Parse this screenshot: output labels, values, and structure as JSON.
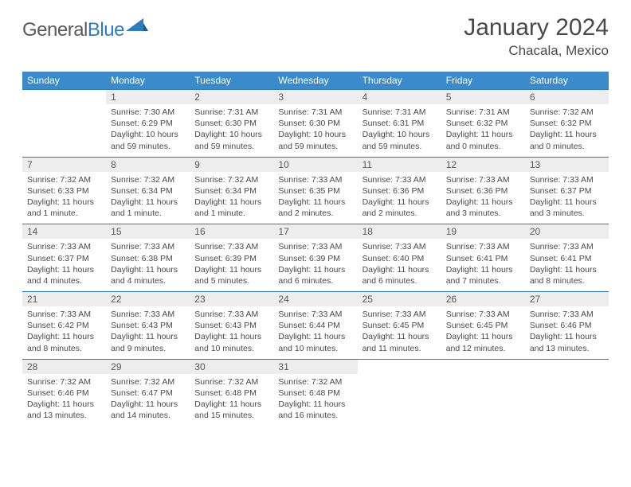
{
  "logo": {
    "part1": "General",
    "part2": "Blue"
  },
  "title": "January 2024",
  "location": "Chacala, Mexico",
  "colors": {
    "header_bg": "#3b8bca",
    "header_text": "#ffffff",
    "daynum_bg": "#ededed",
    "row_border": "#2f7bbd",
    "text": "#4a4a4a",
    "logo_accent": "#2f7bbd"
  },
  "weekdays": [
    "Sunday",
    "Monday",
    "Tuesday",
    "Wednesday",
    "Thursday",
    "Friday",
    "Saturday"
  ],
  "weeks": [
    {
      "nums": [
        "",
        "1",
        "2",
        "3",
        "4",
        "5",
        "6"
      ],
      "cells": [
        null,
        {
          "sunrise": "Sunrise: 7:30 AM",
          "sunset": "Sunset: 6:29 PM",
          "daylight": "Daylight: 10 hours and 59 minutes."
        },
        {
          "sunrise": "Sunrise: 7:31 AM",
          "sunset": "Sunset: 6:30 PM",
          "daylight": "Daylight: 10 hours and 59 minutes."
        },
        {
          "sunrise": "Sunrise: 7:31 AM",
          "sunset": "Sunset: 6:30 PM",
          "daylight": "Daylight: 10 hours and 59 minutes."
        },
        {
          "sunrise": "Sunrise: 7:31 AM",
          "sunset": "Sunset: 6:31 PM",
          "daylight": "Daylight: 10 hours and 59 minutes."
        },
        {
          "sunrise": "Sunrise: 7:31 AM",
          "sunset": "Sunset: 6:32 PM",
          "daylight": "Daylight: 11 hours and 0 minutes."
        },
        {
          "sunrise": "Sunrise: 7:32 AM",
          "sunset": "Sunset: 6:32 PM",
          "daylight": "Daylight: 11 hours and 0 minutes."
        }
      ]
    },
    {
      "nums": [
        "7",
        "8",
        "9",
        "10",
        "11",
        "12",
        "13"
      ],
      "cells": [
        {
          "sunrise": "Sunrise: 7:32 AM",
          "sunset": "Sunset: 6:33 PM",
          "daylight": "Daylight: 11 hours and 1 minute."
        },
        {
          "sunrise": "Sunrise: 7:32 AM",
          "sunset": "Sunset: 6:34 PM",
          "daylight": "Daylight: 11 hours and 1 minute."
        },
        {
          "sunrise": "Sunrise: 7:32 AM",
          "sunset": "Sunset: 6:34 PM",
          "daylight": "Daylight: 11 hours and 1 minute."
        },
        {
          "sunrise": "Sunrise: 7:33 AM",
          "sunset": "Sunset: 6:35 PM",
          "daylight": "Daylight: 11 hours and 2 minutes."
        },
        {
          "sunrise": "Sunrise: 7:33 AM",
          "sunset": "Sunset: 6:36 PM",
          "daylight": "Daylight: 11 hours and 2 minutes."
        },
        {
          "sunrise": "Sunrise: 7:33 AM",
          "sunset": "Sunset: 6:36 PM",
          "daylight": "Daylight: 11 hours and 3 minutes."
        },
        {
          "sunrise": "Sunrise: 7:33 AM",
          "sunset": "Sunset: 6:37 PM",
          "daylight": "Daylight: 11 hours and 3 minutes."
        }
      ]
    },
    {
      "nums": [
        "14",
        "15",
        "16",
        "17",
        "18",
        "19",
        "20"
      ],
      "cells": [
        {
          "sunrise": "Sunrise: 7:33 AM",
          "sunset": "Sunset: 6:37 PM",
          "daylight": "Daylight: 11 hours and 4 minutes."
        },
        {
          "sunrise": "Sunrise: 7:33 AM",
          "sunset": "Sunset: 6:38 PM",
          "daylight": "Daylight: 11 hours and 4 minutes."
        },
        {
          "sunrise": "Sunrise: 7:33 AM",
          "sunset": "Sunset: 6:39 PM",
          "daylight": "Daylight: 11 hours and 5 minutes."
        },
        {
          "sunrise": "Sunrise: 7:33 AM",
          "sunset": "Sunset: 6:39 PM",
          "daylight": "Daylight: 11 hours and 6 minutes."
        },
        {
          "sunrise": "Sunrise: 7:33 AM",
          "sunset": "Sunset: 6:40 PM",
          "daylight": "Daylight: 11 hours and 6 minutes."
        },
        {
          "sunrise": "Sunrise: 7:33 AM",
          "sunset": "Sunset: 6:41 PM",
          "daylight": "Daylight: 11 hours and 7 minutes."
        },
        {
          "sunrise": "Sunrise: 7:33 AM",
          "sunset": "Sunset: 6:41 PM",
          "daylight": "Daylight: 11 hours and 8 minutes."
        }
      ]
    },
    {
      "nums": [
        "21",
        "22",
        "23",
        "24",
        "25",
        "26",
        "27"
      ],
      "cells": [
        {
          "sunrise": "Sunrise: 7:33 AM",
          "sunset": "Sunset: 6:42 PM",
          "daylight": "Daylight: 11 hours and 8 minutes."
        },
        {
          "sunrise": "Sunrise: 7:33 AM",
          "sunset": "Sunset: 6:43 PM",
          "daylight": "Daylight: 11 hours and 9 minutes."
        },
        {
          "sunrise": "Sunrise: 7:33 AM",
          "sunset": "Sunset: 6:43 PM",
          "daylight": "Daylight: 11 hours and 10 minutes."
        },
        {
          "sunrise": "Sunrise: 7:33 AM",
          "sunset": "Sunset: 6:44 PM",
          "daylight": "Daylight: 11 hours and 10 minutes."
        },
        {
          "sunrise": "Sunrise: 7:33 AM",
          "sunset": "Sunset: 6:45 PM",
          "daylight": "Daylight: 11 hours and 11 minutes."
        },
        {
          "sunrise": "Sunrise: 7:33 AM",
          "sunset": "Sunset: 6:45 PM",
          "daylight": "Daylight: 11 hours and 12 minutes."
        },
        {
          "sunrise": "Sunrise: 7:33 AM",
          "sunset": "Sunset: 6:46 PM",
          "daylight": "Daylight: 11 hours and 13 minutes."
        }
      ]
    },
    {
      "nums": [
        "28",
        "29",
        "30",
        "31",
        "",
        "",
        ""
      ],
      "cells": [
        {
          "sunrise": "Sunrise: 7:32 AM",
          "sunset": "Sunset: 6:46 PM",
          "daylight": "Daylight: 11 hours and 13 minutes."
        },
        {
          "sunrise": "Sunrise: 7:32 AM",
          "sunset": "Sunset: 6:47 PM",
          "daylight": "Daylight: 11 hours and 14 minutes."
        },
        {
          "sunrise": "Sunrise: 7:32 AM",
          "sunset": "Sunset: 6:48 PM",
          "daylight": "Daylight: 11 hours and 15 minutes."
        },
        {
          "sunrise": "Sunrise: 7:32 AM",
          "sunset": "Sunset: 6:48 PM",
          "daylight": "Daylight: 11 hours and 16 minutes."
        },
        null,
        null,
        null
      ]
    }
  ]
}
